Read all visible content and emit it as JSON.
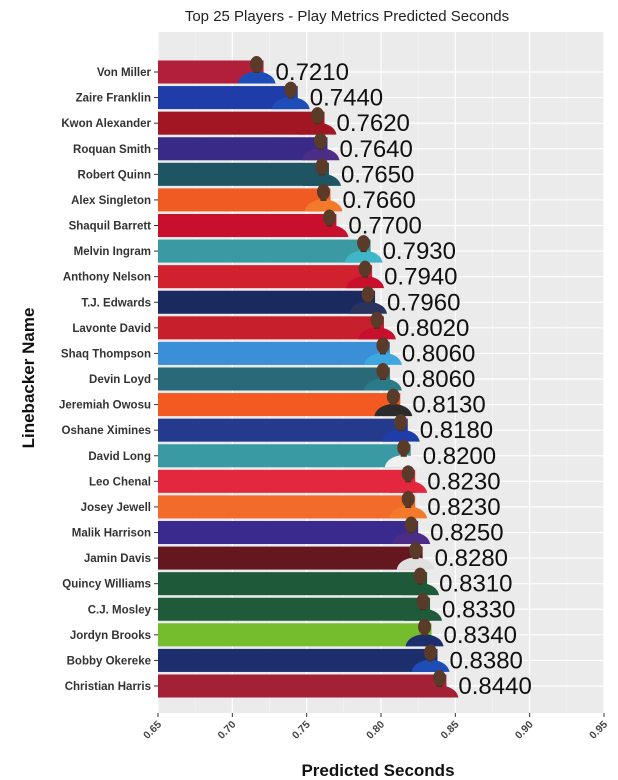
{
  "chart_data": {
    "type": "bar",
    "orientation": "horizontal",
    "title": "Top 25 Players - Play Metrics Predicted Seconds",
    "xlabel": "Predicted Seconds",
    "ylabel": "Linebacker Name",
    "xlim": [
      0.65,
      0.95
    ],
    "xticks": [
      0.65,
      0.7,
      0.75,
      0.8,
      0.85,
      0.9,
      0.95
    ],
    "xtick_labels": [
      "0.65",
      "0.70",
      "0.75",
      "0.80",
      "0.85",
      "0.90",
      "0.95"
    ],
    "grid": true,
    "categories": [
      "Von Miller",
      "Zaire Franklin",
      "Kwon Alexander",
      "Roquan Smith",
      "Robert Quinn",
      "Alex Singleton",
      "Shaquil Barrett",
      "Melvin Ingram",
      "Anthony Nelson",
      "T.J. Edwards",
      "Lavonte David",
      "Shaq Thompson",
      "Devin Loyd",
      "Jeremiah Owosu",
      "Oshane Ximines",
      "David Long",
      "Leo Chenal",
      "Josey Jewell",
      "Malik Harrison",
      "Jamin Davis",
      "Quincy Williams",
      "C.J. Mosley",
      "Jordyn Brooks",
      "Bobby Okereke",
      "Christian Harris"
    ],
    "values": [
      0.721,
      0.744,
      0.762,
      0.764,
      0.765,
      0.766,
      0.77,
      0.793,
      0.794,
      0.796,
      0.802,
      0.806,
      0.806,
      0.813,
      0.818,
      0.82,
      0.823,
      0.823,
      0.825,
      0.828,
      0.831,
      0.833,
      0.834,
      0.838,
      0.844
    ],
    "value_labels": [
      "0.7210",
      "0.7440",
      "0.7620",
      "0.7640",
      "0.7650",
      "0.7660",
      "0.7700",
      "0.7930",
      "0.7940",
      "0.7960",
      "0.8020",
      "0.8060",
      "0.8060",
      "0.8130",
      "0.8180",
      "0.8200",
      "0.8230",
      "0.8230",
      "0.8250",
      "0.8280",
      "0.8310",
      "0.8330",
      "0.8340",
      "0.8380",
      "0.8440"
    ],
    "colors": [
      "#B21F3A",
      "#1F3DA8",
      "#A11622",
      "#3A2A87",
      "#1F5562",
      "#F05A23",
      "#C8102E",
      "#3A99A3",
      "#D1212E",
      "#1B2A5E",
      "#C81F2C",
      "#3A8FD6",
      "#2A6A78",
      "#F25A22",
      "#243A8C",
      "#3A9AA3",
      "#E3283E",
      "#F36B2B",
      "#3B2A8E",
      "#64171F",
      "#1E5A3A",
      "#1F5A3A",
      "#76BD2E",
      "#1C2E6E",
      "#A32035"
    ],
    "jersey_colors": [
      "#1F4DB8",
      "#1F4DB8",
      "#A11622",
      "#4B2C87",
      "#1F5562",
      "#F47A2B",
      "#C8102E",
      "#3FB6C9",
      "#C8102E",
      "#2A3360",
      "#C8102E",
      "#3FA7E0",
      "#2A7A88",
      "#2B2B2B",
      "#1F3DA8",
      "#F0F0F0",
      "#E3283E",
      "#F47A2B",
      "#4B2C87",
      "#E0E0E0",
      "#1E5A3A",
      "#1F5A3A",
      "#1C2E6E",
      "#1F4DB8",
      "#A32035"
    ]
  }
}
